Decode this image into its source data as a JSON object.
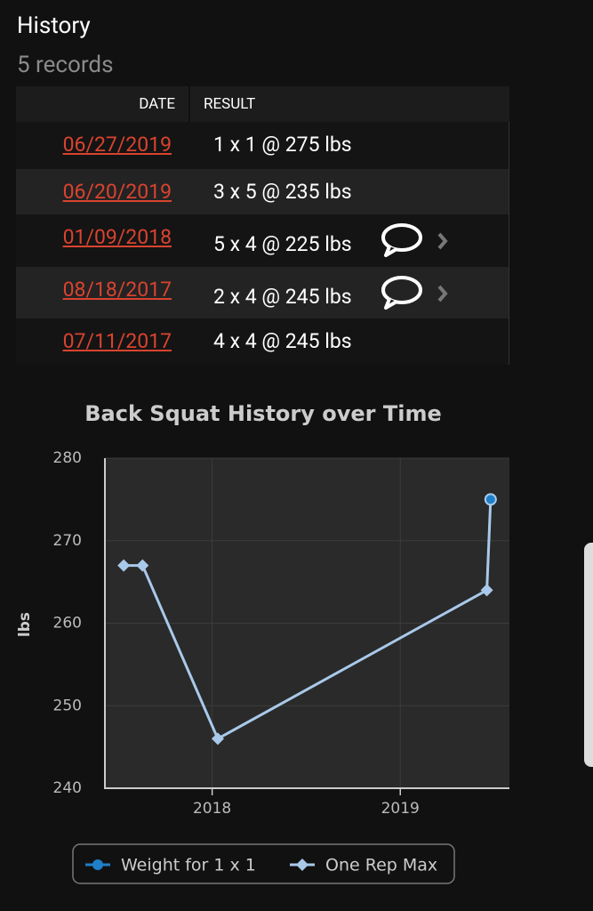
{
  "header": {
    "title": "History",
    "subtitle": "5 records"
  },
  "table": {
    "headers": [
      "DATE",
      "RESULT"
    ],
    "rows": [
      [
        "06/27/2019",
        "1 x 1 @ 275 lbs"
      ],
      [
        "06/20/2019",
        "3 x 5 @ 235 lbs"
      ],
      [
        "01/09/2018",
        "5 x 4 @ 225 lbs"
      ],
      [
        "08/18/2017",
        "2 x 4 @ 245 lbs"
      ],
      [
        "07/11/2017",
        "4 x 4 @ 245 lbs"
      ]
    ]
  },
  "chart_data": {
    "type": "line",
    "title": "Back Squat History over Time",
    "ylabel": "lbs",
    "x": [
      2017.53,
      2017.63,
      2018.03,
      2019.46,
      2019.48
    ],
    "xlim": [
      2017.43,
      2019.58
    ],
    "xticks": [
      2018,
      2019
    ],
    "ylim": [
      240,
      280
    ],
    "yticks": [
      240,
      250,
      260,
      270,
      280
    ],
    "grid": true,
    "series": [
      {
        "name": "Weight for 1 x 1",
        "color": "#1f7fc8",
        "marker": "circle",
        "values": [
          null,
          null,
          null,
          null,
          275
        ]
      },
      {
        "name": "One Rep Max",
        "color": "#a9c9ea",
        "marker": "diamond",
        "values": [
          267,
          267,
          246,
          264,
          275
        ]
      }
    ]
  }
}
